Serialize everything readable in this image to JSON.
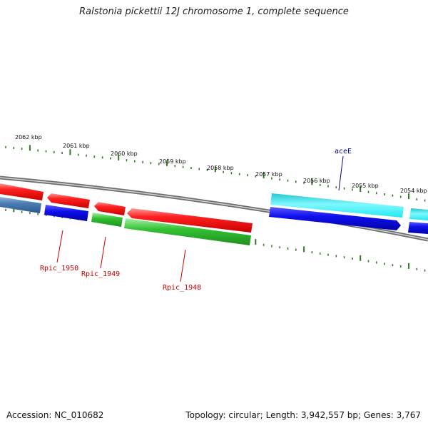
{
  "title": "Ralstonia pickettii 12J chromosome 1, complete sequence",
  "footer": {
    "accession": "Accession: NC_010682",
    "topology": "Topology: circular; Length: 3,942,557 bp; Genes: 3,767"
  },
  "colors": {
    "backbone": "#808080",
    "tick": "#2e7d20",
    "red": "#ff2020",
    "blue": "#1010ee",
    "green": "#33c233",
    "cyan": "#22e8f0",
    "steelblue": "#4a7db4",
    "label_red": "#cc0000",
    "label_navy": "#000080"
  },
  "kbp_labels": [
    {
      "text": "2062 kbp"
    },
    {
      "text": "2061 kbp"
    },
    {
      "text": "2060 kbp"
    },
    {
      "text": "2059 kbp"
    },
    {
      "text": "2058 kbp"
    },
    {
      "text": "2057 kbp"
    },
    {
      "text": "2056 kbp"
    },
    {
      "text": "2055 kbp"
    },
    {
      "text": "2054 kbp"
    }
  ],
  "gene_labels": [
    {
      "text": "aceE"
    },
    {
      "text": "Rpic_1950"
    },
    {
      "text": "Rpic_1949"
    },
    {
      "text": "Rpic_1948"
    }
  ]
}
